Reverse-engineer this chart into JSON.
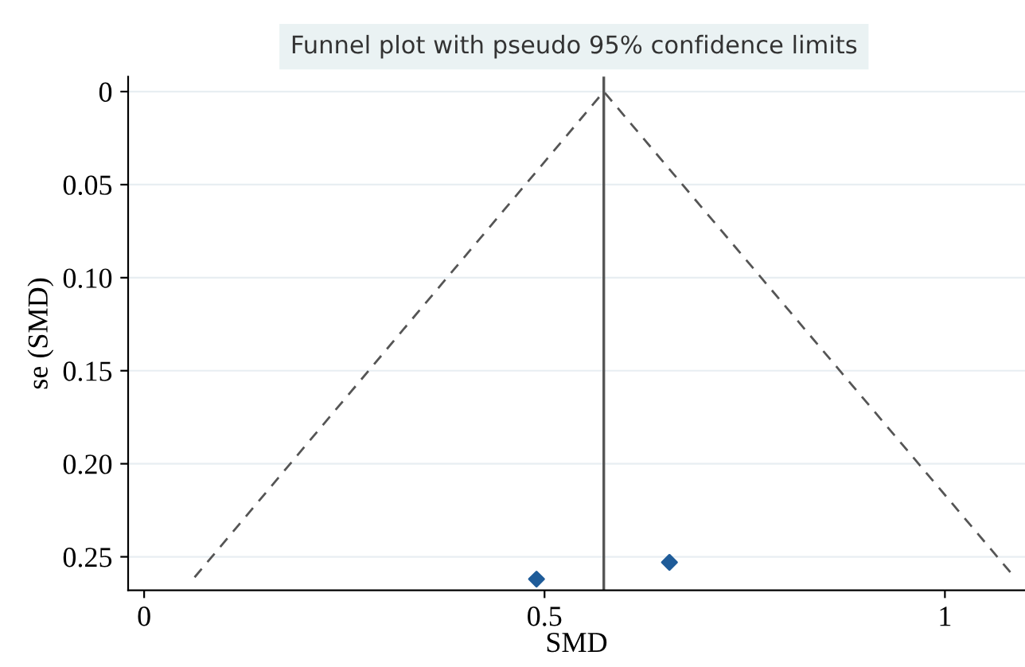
{
  "chart_data": {
    "type": "scatter",
    "title": "Funnel plot with pseudo 95% confidence limits",
    "xlabel": "SMD",
    "ylabel": "se (SMD)",
    "xlim": [
      -0.02,
      1.1
    ],
    "xticks": [
      0,
      0.5,
      1
    ],
    "ylim": [
      0.268,
      -0.008
    ],
    "yticks": [
      0,
      0.05,
      {
        "value": 0.1,
        "label": "0.10"
      },
      0.15,
      {
        "value": 0.2,
        "label": "0.20"
      },
      0.25
    ],
    "grid": "y",
    "legend": false,
    "series": [
      {
        "type": "line",
        "color": "#555555",
        "line_style": "dashed",
        "marker": "none",
        "x": [
          0.063,
          0.574,
          1.087
        ],
        "values": [
          0.261,
          0,
          0.261
        ]
      },
      {
        "color": "#1f5c99",
        "marker": "diamond",
        "x": [
          0.49,
          0.656
        ],
        "values": [
          0.262,
          0.253
        ]
      }
    ],
    "ref_lines": [
      {
        "axis": "x",
        "value": 0.574,
        "color": "#555555",
        "line_style": "solid"
      }
    ]
  }
}
